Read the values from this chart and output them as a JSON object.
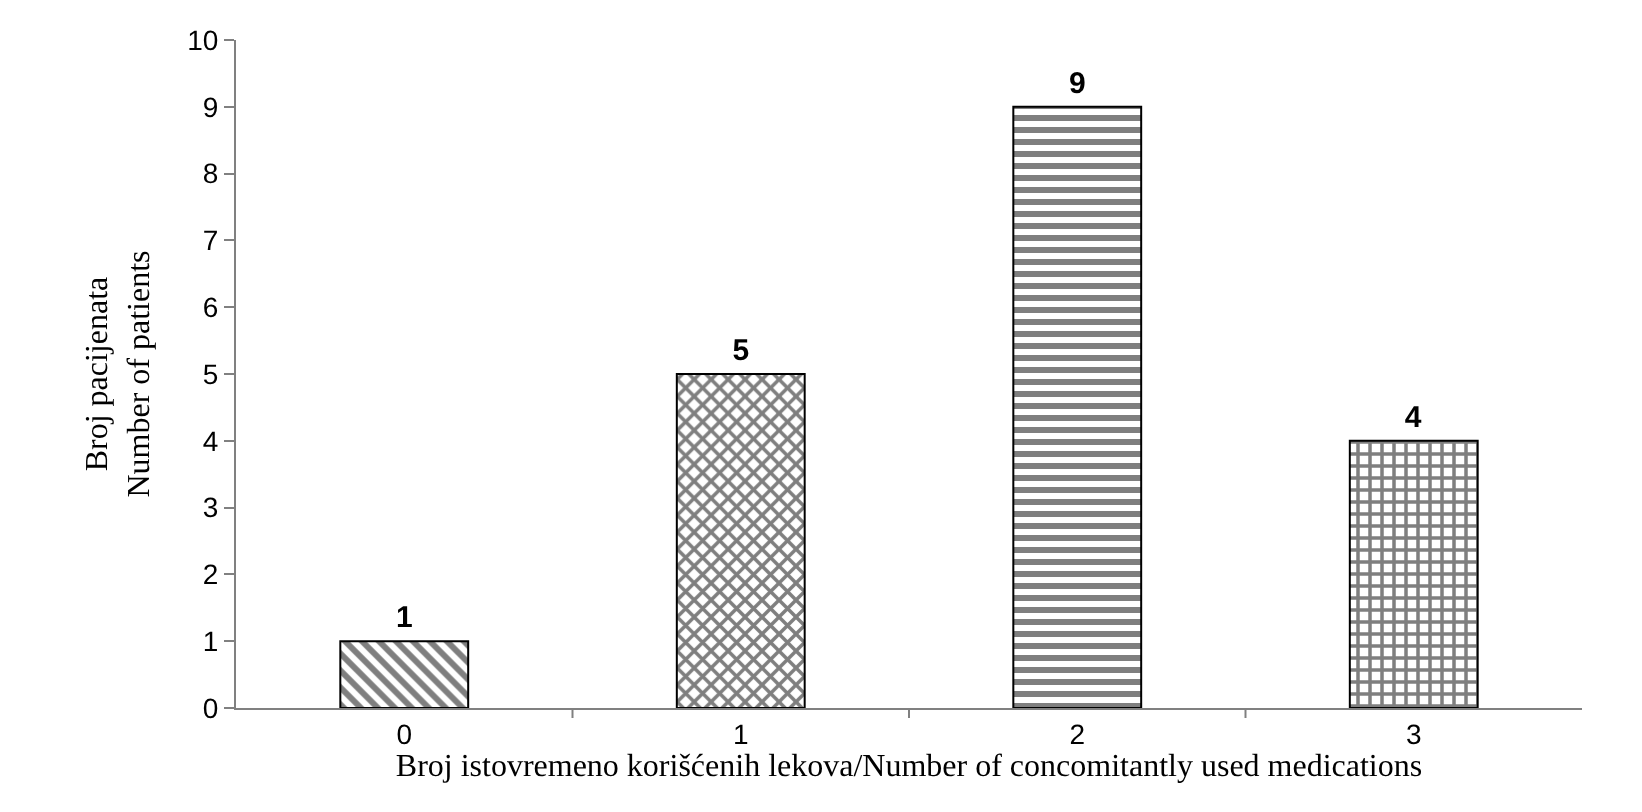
{
  "chart_data": {
    "type": "bar",
    "categories": [
      "0",
      "1",
      "2",
      "3"
    ],
    "values": [
      1,
      5,
      9,
      4
    ],
    "color": "#000000",
    "xlabel": "Broj istovremeno korišćenih lekova/Number of concomitantly used medications",
    "ylabel": "Broj pacijenata\nNumber of patients",
    "ylim": [
      0,
      10
    ],
    "yticks": [
      0,
      1,
      2,
      3,
      4,
      5,
      6,
      7,
      8,
      9,
      10
    ],
    "legend": false,
    "data_labels": true
  }
}
